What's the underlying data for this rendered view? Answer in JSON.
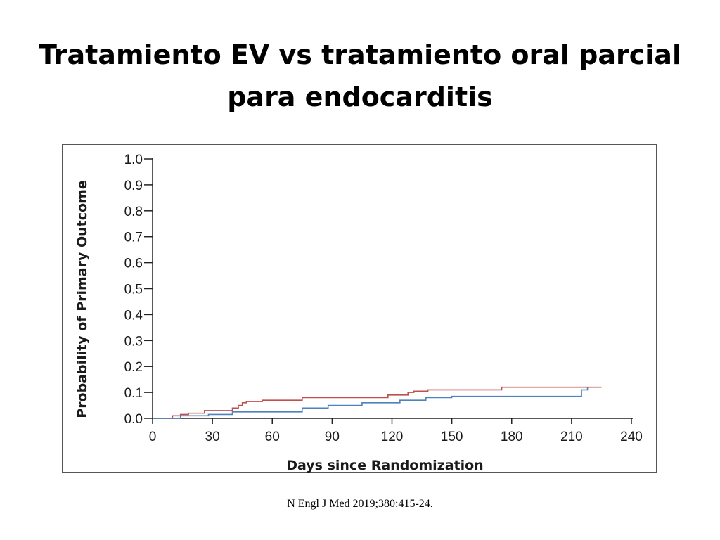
{
  "slide": {
    "title_line1": "Tratamiento EV vs tratamiento oral parcial",
    "title_line2": "para endocarditis",
    "citation": "N Engl J Med 2019;380:415-24."
  },
  "chart_data": {
    "type": "line",
    "step": true,
    "xlabel": "Days since Randomization",
    "ylabel": "Probability of Primary Outcome",
    "xlim": [
      0,
      240
    ],
    "ylim": [
      0.0,
      1.0
    ],
    "xticks": [
      0,
      30,
      60,
      90,
      120,
      150,
      180,
      210,
      240
    ],
    "yticks": [
      0.0,
      0.1,
      0.2,
      0.3,
      0.4,
      0.5,
      0.6,
      0.7,
      0.8,
      0.9,
      1.0
    ],
    "grid": false,
    "series": [
      {
        "color": "#c0504d",
        "x": [
          0,
          10,
          14,
          18,
          26,
          40,
          43,
          45,
          47,
          55,
          75,
          100,
          118,
          128,
          131,
          138,
          175,
          225
        ],
        "y": [
          0.0,
          0.01,
          0.015,
          0.02,
          0.03,
          0.04,
          0.05,
          0.06,
          0.065,
          0.07,
          0.08,
          0.08,
          0.09,
          0.1,
          0.105,
          0.11,
          0.12,
          0.12
        ]
      },
      {
        "color": "#4f81bd",
        "x": [
          0,
          14,
          28,
          40,
          75,
          88,
          105,
          124,
          137,
          150,
          212,
          215,
          218
        ],
        "y": [
          0.0,
          0.01,
          0.015,
          0.025,
          0.04,
          0.05,
          0.06,
          0.07,
          0.08,
          0.085,
          0.085,
          0.11,
          0.12
        ]
      }
    ]
  }
}
